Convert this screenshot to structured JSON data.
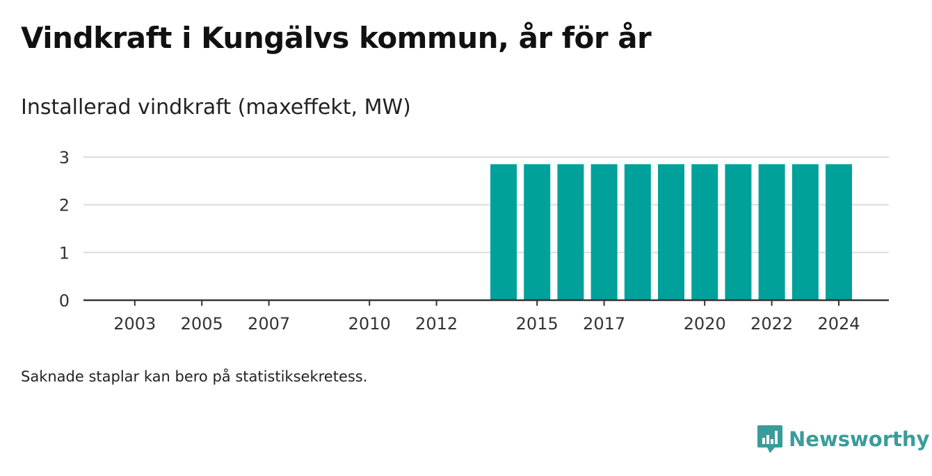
{
  "title": "Vindkraft i Kungälvs kommun, år för år",
  "note": "Saknade staplar kan bero på statistiksekretess.",
  "brand": {
    "name": "Newsworthy",
    "icon": "bar-chart-bubble-icon",
    "color": "#3a9c9a"
  },
  "chart_data": {
    "type": "bar",
    "title": "Installerad vindkraft (maxeffekt, MW)",
    "categories": [
      "2003",
      "2004",
      "2005",
      "2006",
      "2007",
      "2008",
      "2009",
      "2010",
      "2011",
      "2012",
      "2013",
      "2014",
      "2015",
      "2016",
      "2017",
      "2018",
      "2019",
      "2020",
      "2021",
      "2022",
      "2023",
      "2024"
    ],
    "tick_labels": [
      "2003",
      "2005",
      "2007",
      "2010",
      "2012",
      "2015",
      "2017",
      "2020",
      "2022",
      "2024"
    ],
    "series": [
      {
        "values": [
          null,
          null,
          null,
          null,
          null,
          null,
          null,
          null,
          null,
          null,
          null,
          2.85,
          2.85,
          2.85,
          2.85,
          2.85,
          2.85,
          2.85,
          2.85,
          2.85,
          2.85,
          2.85
        ]
      }
    ],
    "y_ticks": [
      0,
      1,
      2,
      3
    ],
    "ylim": [
      0,
      3
    ],
    "xlabel": "",
    "ylabel": "",
    "grid": true,
    "bar_color": "#00a19a"
  }
}
